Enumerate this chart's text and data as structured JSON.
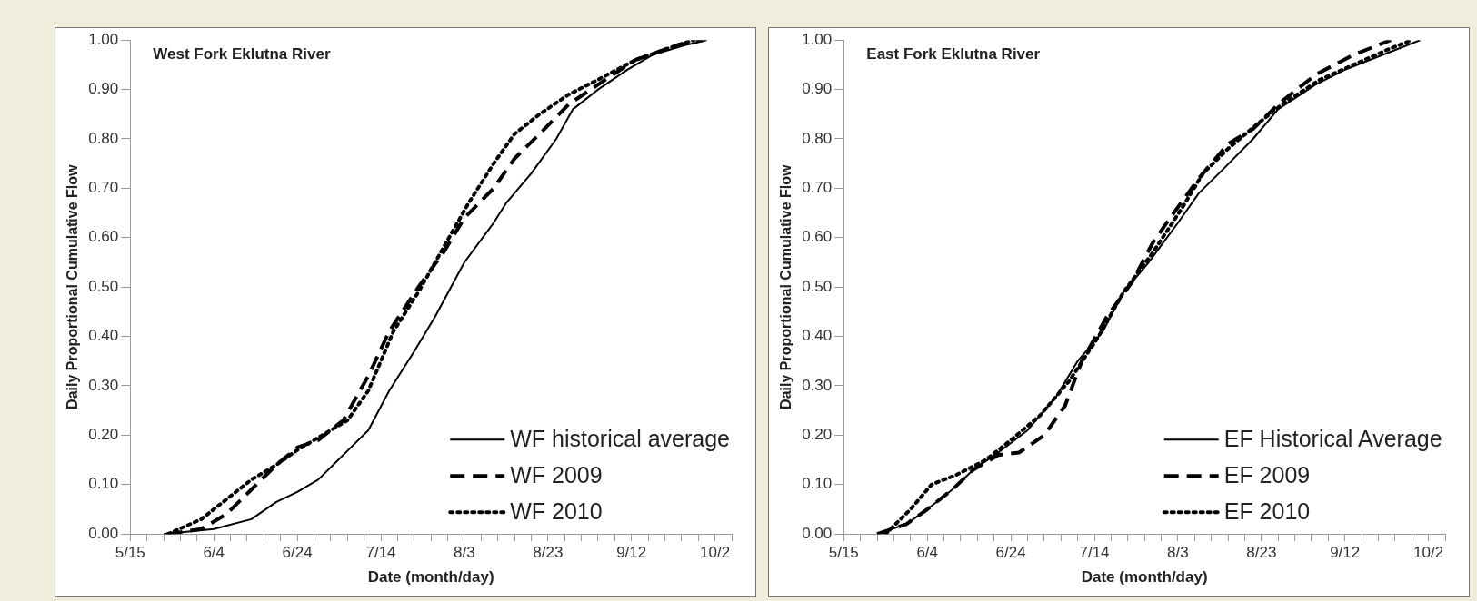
{
  "chart_data": [
    {
      "type": "line",
      "title": "West Fork Eklutna River",
      "xlabel": "Date (month/day)",
      "ylabel": "Daily Proportional Cumulative Flow",
      "legend": "bottom right",
      "grid": false,
      "marker": "none",
      "xlim": [
        "--05-15",
        "--10-06"
      ],
      "ylim": [
        0,
        1
      ],
      "xticks": [
        {
          "value": "--05-15",
          "label": "5/15"
        },
        {
          "value": "--05-19",
          "label": null
        },
        {
          "value": "--05-23",
          "label": null
        },
        {
          "value": "--05-27",
          "label": null
        },
        {
          "value": "--05-31",
          "label": null
        },
        {
          "value": "--06-04",
          "label": "6/4"
        },
        {
          "value": "--06-08",
          "label": null
        },
        {
          "value": "--06-12",
          "label": null
        },
        {
          "value": "--06-16",
          "label": null
        },
        {
          "value": "--06-20",
          "label": null
        },
        {
          "value": "--06-24",
          "label": "6/24"
        },
        {
          "value": "--06-28",
          "label": null
        },
        {
          "value": "--07-02",
          "label": null
        },
        {
          "value": "--07-06",
          "label": null
        },
        {
          "value": "--07-10",
          "label": null
        },
        {
          "value": "--07-14",
          "label": "7/14"
        },
        {
          "value": "--07-18",
          "label": null
        },
        {
          "value": "--07-22",
          "label": null
        },
        {
          "value": "--07-26",
          "label": null
        },
        {
          "value": "--07-30",
          "label": null
        },
        {
          "value": "--08-03",
          "label": "8/3"
        },
        {
          "value": "--08-07",
          "label": null
        },
        {
          "value": "--08-11",
          "label": null
        },
        {
          "value": "--08-15",
          "label": null
        },
        {
          "value": "--08-19",
          "label": null
        },
        {
          "value": "--08-23",
          "label": "8/23"
        },
        {
          "value": "--08-27",
          "label": null
        },
        {
          "value": "--08-31",
          "label": null
        },
        {
          "value": "--09-04",
          "label": null
        },
        {
          "value": "--09-08",
          "label": null
        },
        {
          "value": "--09-12",
          "label": "9/12"
        },
        {
          "value": "--09-16",
          "label": null
        },
        {
          "value": "--09-20",
          "label": null
        },
        {
          "value": "--09-24",
          "label": null
        },
        {
          "value": "--09-28",
          "label": null
        },
        {
          "value": "--10-02",
          "label": "10/2"
        },
        {
          "value": "--10-06",
          "label": null
        }
      ],
      "yticks": [
        {
          "value": 0,
          "label": "0.00"
        },
        {
          "value": 0.1,
          "label": "0.10"
        },
        {
          "value": 0.2,
          "label": "0.20"
        },
        {
          "value": 0.3,
          "label": "0.30"
        },
        {
          "value": 0.4,
          "label": "0.40"
        },
        {
          "value": 0.5,
          "label": "0.50"
        },
        {
          "value": 0.6,
          "label": "0.60"
        },
        {
          "value": 0.7,
          "label": "0.70"
        },
        {
          "value": 0.8,
          "label": "0.80"
        },
        {
          "value": 0.9,
          "label": "0.90"
        },
        {
          "value": 1,
          "label": "1.00"
        }
      ],
      "series": [
        {
          "name": "WF historical average",
          "color": "#000000",
          "line_style": "solid",
          "x": [
            "--05-23",
            "--06-04",
            "--06-13",
            "--06-19",
            "--06-24",
            "--06-29",
            "--07-05",
            "--07-11",
            "--07-16",
            "--07-22",
            "--07-27",
            "--08-03",
            "--08-10",
            "--08-13",
            "--08-19",
            "--08-25",
            "--08-29",
            "--09-04",
            "--09-11",
            "--09-17",
            "--09-25",
            "--09-30"
          ],
          "values": [
            0,
            0.01,
            0.03,
            0.065,
            0.085,
            0.11,
            0.16,
            0.21,
            0.29,
            0.37,
            0.44,
            0.55,
            0.63,
            0.67,
            0.73,
            0.8,
            0.86,
            0.9,
            0.94,
            0.97,
            0.99,
            1
          ]
        },
        {
          "name": "WF 2009",
          "color": "#000000",
          "line_style": "dashed",
          "x": [
            "--05-24",
            "--06-01",
            "--06-07",
            "--06-13",
            "--06-19",
            "--06-24",
            "--06-29",
            "--07-05",
            "--07-11",
            "--07-16",
            "--07-23",
            "--07-29",
            "--08-03",
            "--08-10",
            "--08-15",
            "--08-21",
            "--08-28",
            "--09-04",
            "--09-13",
            "--09-23",
            "--09-29"
          ],
          "values": [
            0,
            0.01,
            0.04,
            0.09,
            0.14,
            0.175,
            0.19,
            0.23,
            0.32,
            0.41,
            0.5,
            0.57,
            0.64,
            0.7,
            0.76,
            0.81,
            0.87,
            0.91,
            0.96,
            0.99,
            1
          ]
        },
        {
          "name": "WF 2010",
          "color": "#000000",
          "line_style": "dotted",
          "x": [
            "--05-24",
            "--06-01",
            "--06-07",
            "--06-13",
            "--06-19",
            "--06-24",
            "--06-30",
            "--07-06",
            "--07-11",
            "--07-17",
            "--07-23",
            "--07-29",
            "--08-04",
            "--08-10",
            "--08-15",
            "--08-21",
            "--08-28",
            "--09-04",
            "--09-13",
            "--09-23",
            "--09-27"
          ],
          "values": [
            0,
            0.03,
            0.07,
            0.11,
            0.14,
            0.17,
            0.2,
            0.23,
            0.29,
            0.41,
            0.49,
            0.58,
            0.67,
            0.75,
            0.81,
            0.85,
            0.89,
            0.92,
            0.96,
            0.99,
            1
          ]
        }
      ]
    },
    {
      "type": "line",
      "title": "East Fork Eklutna River",
      "xlabel": "Date (month/day)",
      "ylabel": "Daily Proportional Cumulative Flow",
      "legend": "bottom right",
      "grid": false,
      "marker": "none",
      "xlim": [
        "--05-15",
        "--10-06"
      ],
      "ylim": [
        0,
        1
      ],
      "xticks": [
        {
          "value": "--05-15",
          "label": "5/15"
        },
        {
          "value": "--05-19",
          "label": null
        },
        {
          "value": "--05-23",
          "label": null
        },
        {
          "value": "--05-27",
          "label": null
        },
        {
          "value": "--05-31",
          "label": null
        },
        {
          "value": "--06-04",
          "label": "6/4"
        },
        {
          "value": "--06-08",
          "label": null
        },
        {
          "value": "--06-12",
          "label": null
        },
        {
          "value": "--06-16",
          "label": null
        },
        {
          "value": "--06-20",
          "label": null
        },
        {
          "value": "--06-24",
          "label": "6/24"
        },
        {
          "value": "--06-28",
          "label": null
        },
        {
          "value": "--07-02",
          "label": null
        },
        {
          "value": "--07-06",
          "label": null
        },
        {
          "value": "--07-10",
          "label": null
        },
        {
          "value": "--07-14",
          "label": "7/14"
        },
        {
          "value": "--07-18",
          "label": null
        },
        {
          "value": "--07-22",
          "label": null
        },
        {
          "value": "--07-26",
          "label": null
        },
        {
          "value": "--07-30",
          "label": null
        },
        {
          "value": "--08-03",
          "label": "8/3"
        },
        {
          "value": "--08-07",
          "label": null
        },
        {
          "value": "--08-11",
          "label": null
        },
        {
          "value": "--08-15",
          "label": null
        },
        {
          "value": "--08-19",
          "label": null
        },
        {
          "value": "--08-23",
          "label": "8/23"
        },
        {
          "value": "--08-27",
          "label": null
        },
        {
          "value": "--08-31",
          "label": null
        },
        {
          "value": "--09-04",
          "label": null
        },
        {
          "value": "--09-08",
          "label": null
        },
        {
          "value": "--09-12",
          "label": "9/12"
        },
        {
          "value": "--09-16",
          "label": null
        },
        {
          "value": "--09-20",
          "label": null
        },
        {
          "value": "--09-24",
          "label": null
        },
        {
          "value": "--09-28",
          "label": null
        },
        {
          "value": "--10-02",
          "label": "10/2"
        },
        {
          "value": "--10-06",
          "label": null
        }
      ],
      "yticks": [
        {
          "value": 0,
          "label": "0.00"
        },
        {
          "value": 0.1,
          "label": "0.10"
        },
        {
          "value": 0.2,
          "label": "0.20"
        },
        {
          "value": 0.3,
          "label": "0.30"
        },
        {
          "value": 0.4,
          "label": "0.40"
        },
        {
          "value": 0.5,
          "label": "0.50"
        },
        {
          "value": 0.6,
          "label": "0.60"
        },
        {
          "value": 0.7,
          "label": "0.70"
        },
        {
          "value": 0.8,
          "label": "0.80"
        },
        {
          "value": 0.9,
          "label": "0.90"
        },
        {
          "value": 1,
          "label": "1.00"
        }
      ],
      "series": [
        {
          "name": "EF Historical Average",
          "color": "#000000",
          "line_style": "solid",
          "x": [
            "--05-23",
            "--05-30",
            "--06-04",
            "--06-10",
            "--06-15",
            "--06-21",
            "--06-28",
            "--07-05",
            "--07-10",
            "--07-16",
            "--07-21",
            "--07-27",
            "--08-03",
            "--08-08",
            "--08-14",
            "--08-21",
            "--08-27",
            "--09-05",
            "--09-12",
            "--09-21",
            "--09-30"
          ],
          "values": [
            0,
            0.02,
            0.05,
            0.09,
            0.13,
            0.165,
            0.21,
            0.28,
            0.35,
            0.41,
            0.49,
            0.55,
            0.63,
            0.69,
            0.74,
            0.8,
            0.86,
            0.91,
            0.94,
            0.97,
            1
          ]
        },
        {
          "name": "EF 2009",
          "color": "#000000",
          "line_style": "dashed",
          "x": [
            "--05-23",
            "--05-30",
            "--06-04",
            "--06-10",
            "--06-15",
            "--06-21",
            "--06-26",
            "--07-02",
            "--07-07",
            "--07-11",
            "--07-17",
            "--07-23",
            "--07-28",
            "--08-02",
            "--08-08",
            "--08-15",
            "--08-21",
            "--08-27",
            "--09-05",
            "--09-14",
            "--09-23"
          ],
          "values": [
            0,
            0.02,
            0.05,
            0.09,
            0.13,
            0.16,
            0.165,
            0.2,
            0.26,
            0.35,
            0.44,
            0.51,
            0.59,
            0.65,
            0.72,
            0.79,
            0.82,
            0.87,
            0.93,
            0.97,
            1
          ]
        },
        {
          "name": "EF 2010",
          "color": "#000000",
          "line_style": "dotted",
          "x": [
            "--05-25",
            "--05-31",
            "--06-05",
            "--06-11",
            "--06-18",
            "--06-24",
            "--07-01",
            "--07-08",
            "--07-15",
            "--07-21",
            "--07-28",
            "--08-04",
            "--08-09",
            "--08-15",
            "--08-22",
            "--08-28",
            "--09-06",
            "--09-14",
            "--09-22",
            "--09-28"
          ],
          "values": [
            0,
            0.05,
            0.1,
            0.12,
            0.15,
            0.19,
            0.24,
            0.31,
            0.4,
            0.49,
            0.57,
            0.66,
            0.73,
            0.78,
            0.83,
            0.87,
            0.92,
            0.95,
            0.98,
            1
          ]
        }
      ]
    }
  ]
}
